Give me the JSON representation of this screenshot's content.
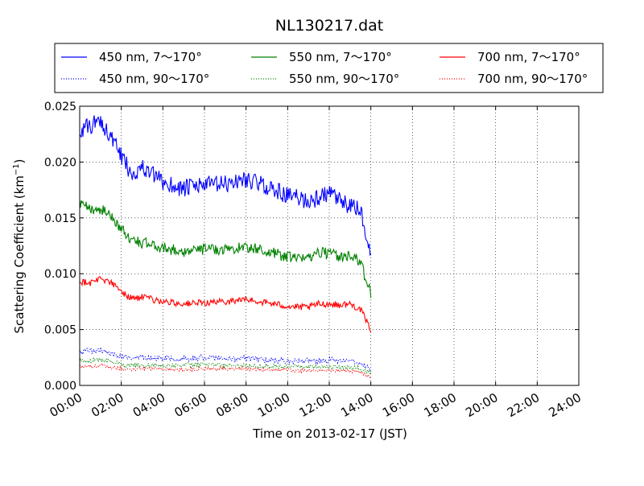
{
  "chart_data": {
    "type": "line",
    "title": "NL130217.dat",
    "xlabel": "Time on 2013-02-17 (JST)",
    "ylabel_main": "Scattering Coefficient (km",
    "ylabel_sup": "−1",
    "ylabel_close": ")",
    "xlim": [
      0,
      24
    ],
    "ylim": [
      0,
      0.025
    ],
    "grid": true,
    "legend_placement": "top, above plot",
    "x_ticks": [
      0,
      2,
      4,
      6,
      8,
      10,
      12,
      14,
      16,
      18,
      20,
      22,
      24
    ],
    "x_tick_labels": [
      "00:00",
      "02:00",
      "04:00",
      "06:00",
      "08:00",
      "10:00",
      "12:00",
      "14:00",
      "16:00",
      "18:00",
      "20:00",
      "22:00",
      "24:00"
    ],
    "y_ticks": [
      0,
      0.005,
      0.01,
      0.015,
      0.02,
      0.025
    ],
    "y_tick_labels": [
      "0.000",
      "0.005",
      "0.010",
      "0.015",
      "0.020",
      "0.025"
    ],
    "x_anchor": [
      0,
      0.5,
      1,
      1.5,
      2,
      2.5,
      3,
      4,
      5,
      6,
      7,
      8,
      9,
      10,
      10.5,
      11,
      11.5,
      12,
      12.5,
      13,
      13.5,
      14
    ],
    "series": [
      {
        "name": "450 nm, 7～170°",
        "style": "solid",
        "color": "#0000ff",
        "y": [
          0.0228,
          0.0232,
          0.0238,
          0.0222,
          0.0205,
          0.019,
          0.0195,
          0.0182,
          0.0176,
          0.018,
          0.018,
          0.0185,
          0.0178,
          0.017,
          0.0168,
          0.0165,
          0.0168,
          0.0172,
          0.0165,
          0.016,
          0.0158,
          0.0112
        ],
        "noise": 0.0008
      },
      {
        "name": "450 nm, 90～170°",
        "style": "dotted",
        "color": "#0000ff",
        "y": [
          0.003,
          0.0031,
          0.0032,
          0.0028,
          0.0026,
          0.0024,
          0.0025,
          0.0024,
          0.0024,
          0.0025,
          0.0024,
          0.0024,
          0.0023,
          0.0022,
          0.0022,
          0.0022,
          0.0021,
          0.0023,
          0.0022,
          0.0021,
          0.002,
          0.0015
        ],
        "noise": 0.00025
      },
      {
        "name": "550 nm, 7～170°",
        "style": "solid",
        "color": "#008000",
        "y": [
          0.0162,
          0.0158,
          0.0158,
          0.0152,
          0.014,
          0.013,
          0.0128,
          0.0123,
          0.012,
          0.0122,
          0.0122,
          0.0124,
          0.012,
          0.0115,
          0.0113,
          0.0115,
          0.012,
          0.0118,
          0.0115,
          0.0117,
          0.011,
          0.0082
        ],
        "noise": 0.0005
      },
      {
        "name": "550 nm, 90～170°",
        "style": "dotted",
        "color": "#008000",
        "y": [
          0.0022,
          0.0022,
          0.0023,
          0.0021,
          0.0019,
          0.0018,
          0.0018,
          0.0018,
          0.0018,
          0.0019,
          0.0018,
          0.0018,
          0.0017,
          0.0017,
          0.0017,
          0.0016,
          0.0016,
          0.0017,
          0.0016,
          0.0016,
          0.0015,
          0.0011
        ],
        "noise": 0.0002
      },
      {
        "name": "700 nm, 7～170°",
        "style": "solid",
        "color": "#ff0000",
        "y": [
          0.0093,
          0.0092,
          0.0096,
          0.0092,
          0.0084,
          0.0078,
          0.0079,
          0.0075,
          0.0073,
          0.0074,
          0.0075,
          0.0077,
          0.0074,
          0.0071,
          0.007,
          0.007,
          0.0073,
          0.0073,
          0.0072,
          0.0073,
          0.0068,
          0.005
        ],
        "noise": 0.0003
      },
      {
        "name": "700 nm, 90～170°",
        "style": "dotted",
        "color": "#ff0000",
        "y": [
          0.0017,
          0.0017,
          0.0018,
          0.0016,
          0.0015,
          0.0014,
          0.0015,
          0.0015,
          0.0014,
          0.0015,
          0.0015,
          0.0015,
          0.0014,
          0.0014,
          0.0013,
          0.0013,
          0.0013,
          0.0014,
          0.0013,
          0.0013,
          0.0012,
          0.0008
        ],
        "noise": 0.00015
      }
    ]
  }
}
